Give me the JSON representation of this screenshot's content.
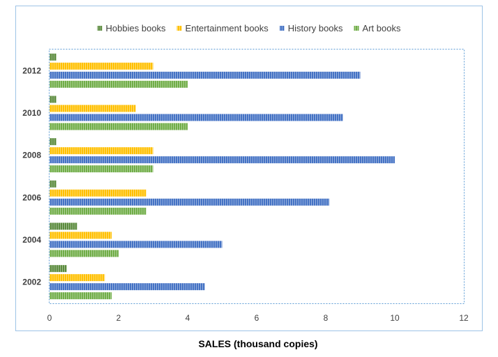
{
  "chart_data": {
    "type": "bar",
    "orientation": "horizontal",
    "categories": [
      "2002",
      "2004",
      "2006",
      "2008",
      "2010",
      "2012"
    ],
    "series": [
      {
        "name": "Hobbies books",
        "color": "#5a8a3c",
        "values": [
          0.5,
          0.8,
          0.2,
          0.2,
          0.2,
          0.2
        ]
      },
      {
        "name": "Entertainment books",
        "color": "#ffc000",
        "values": [
          1.6,
          1.8,
          2.8,
          3.0,
          2.5,
          3.0
        ]
      },
      {
        "name": "History books",
        "color": "#4472c4",
        "values": [
          4.5,
          5.0,
          8.1,
          10.0,
          8.5,
          9.0
        ]
      },
      {
        "name": "Art books",
        "color": "#70ad47",
        "values": [
          1.8,
          2.0,
          2.8,
          3.0,
          4.0,
          4.0
        ]
      }
    ],
    "xlabel": "SALES (thousand copies)",
    "xlim": [
      0,
      12
    ],
    "xticks": [
      0,
      2,
      4,
      6,
      8,
      10,
      12
    ],
    "legend_position": "top",
    "grid": false
  }
}
